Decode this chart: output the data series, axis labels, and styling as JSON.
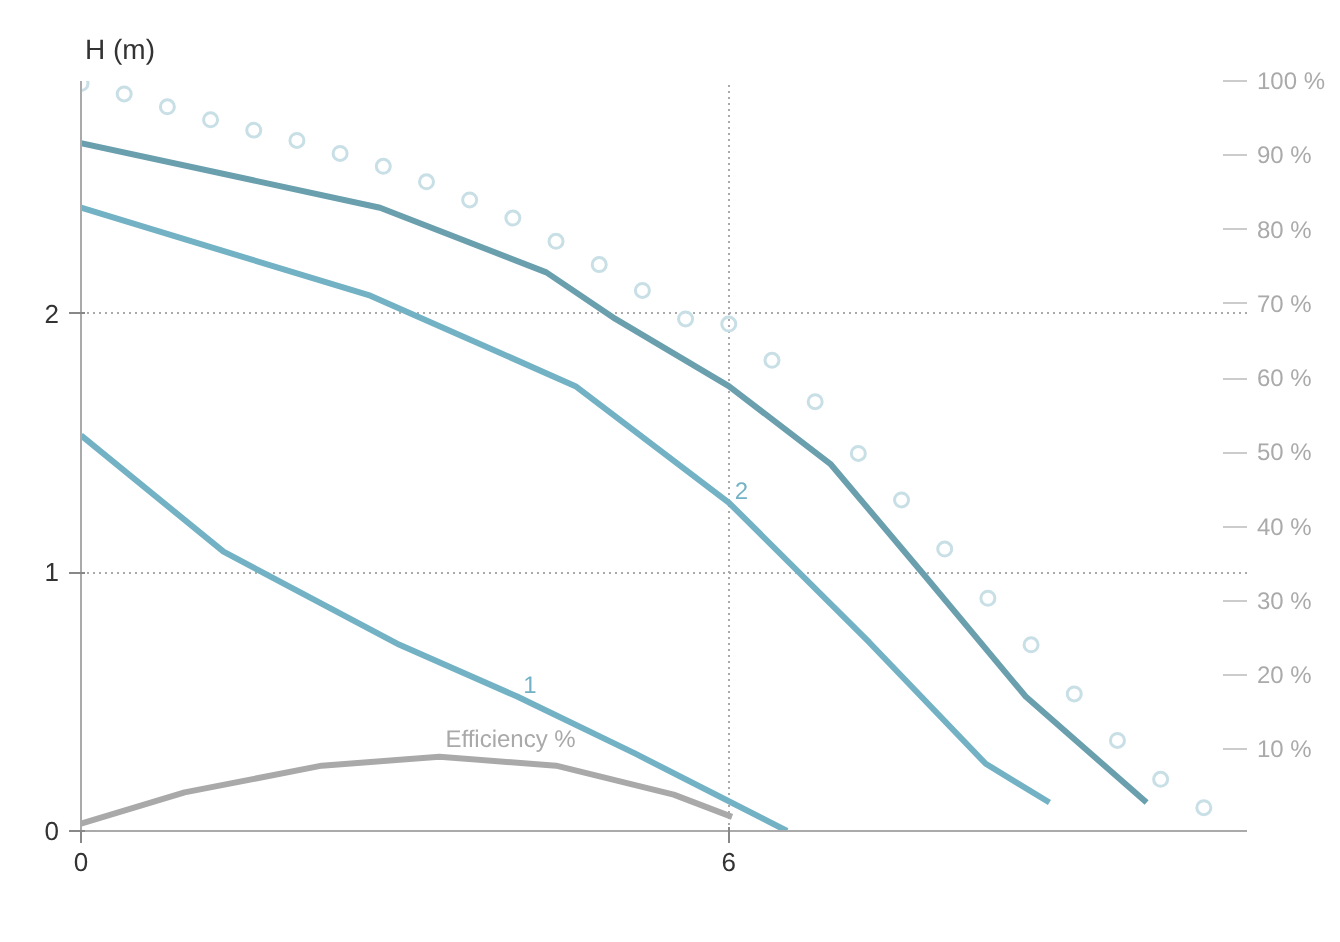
{
  "chart_data": {
    "type": "line",
    "ylabel": "H (m)",
    "xlim": [
      0,
      10.8
    ],
    "xticks": [
      0,
      6
    ],
    "ylim": [
      0,
      2.9
    ],
    "yticks": [
      0,
      1,
      2
    ],
    "y2lim": [
      -1,
      100
    ],
    "y2ticks": [
      {
        "value": 10,
        "label": "10 %"
      },
      {
        "value": 20,
        "label": "20 %"
      },
      {
        "value": 30,
        "label": "30 %"
      },
      {
        "value": 40,
        "label": "40 %"
      },
      {
        "value": 50,
        "label": "50 %"
      },
      {
        "value": 60,
        "label": "60 %"
      },
      {
        "value": 70,
        "label": "70 %"
      },
      {
        "value": 80,
        "label": "80 %"
      },
      {
        "value": 90,
        "label": "90 %"
      },
      {
        "value": 100,
        "label": "100 %"
      }
    ],
    "grid": true,
    "line_style": "solid",
    "series": [
      {
        "type": "scatter",
        "marker": "circle",
        "color": "#c8dfe6",
        "x": [
          0,
          0.4,
          0.8,
          1.2,
          1.6,
          2.0,
          2.4,
          2.8,
          3.2,
          3.6,
          4.0,
          4.4,
          4.8,
          5.2,
          5.6,
          6.0,
          6.4,
          6.8,
          7.2,
          7.6,
          8.0,
          8.4,
          8.8,
          9.2,
          9.6,
          10.0,
          10.4
        ],
        "values": [
          2.89,
          2.85,
          2.8,
          2.75,
          2.71,
          2.67,
          2.62,
          2.57,
          2.51,
          2.44,
          2.37,
          2.28,
          2.19,
          2.09,
          1.98,
          1.96,
          1.82,
          1.66,
          1.46,
          1.28,
          1.09,
          0.9,
          0.72,
          0.53,
          0.35,
          0.2,
          0.09
        ]
      },
      {
        "color": "#6a9fae",
        "x": [
          0,
          2.77,
          4.31,
          4.95,
          6.0,
          6.94,
          7.81,
          8.75,
          9.87
        ],
        "values": [
          2.66,
          2.41,
          2.16,
          1.98,
          1.72,
          1.42,
          0.99,
          0.52,
          0.11
        ]
      },
      {
        "name": "2",
        "color": "#72b2c4",
        "x": [
          0,
          2.68,
          4.58,
          6.0,
          7.3,
          8.38,
          8.97
        ],
        "values": [
          2.41,
          2.07,
          1.72,
          1.27,
          0.73,
          0.26,
          0.11
        ]
      },
      {
        "name": "1",
        "color": "#72b2c4",
        "x": [
          0,
          1.32,
          2.95,
          4.04,
          5.13,
          6.54
        ],
        "values": [
          1.53,
          1.08,
          0.72,
          0.52,
          0.3,
          0.0
        ]
      },
      {
        "name": "Efficiency %",
        "axis": "y2",
        "color": "#a9a9a9",
        "x": [
          0,
          0.96,
          2.23,
          3.32,
          4.4,
          5.49,
          6.03
        ],
        "values": [
          0,
          4.2,
          7.8,
          9.0,
          7.8,
          3.9,
          0.9
        ]
      }
    ]
  }
}
